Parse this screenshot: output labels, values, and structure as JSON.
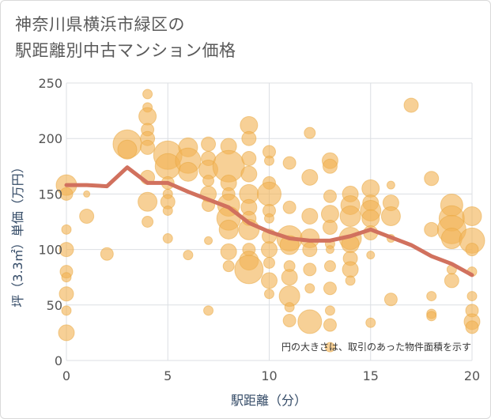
{
  "title_lines": [
    "神奈川県横浜市緑区の",
    "駅距離別中古マンション価格"
  ],
  "chart_data": {
    "type": "scatter",
    "title": "神奈川県横浜市緑区の駅距離別中古マンション価格",
    "xlabel": "駅距離（分）",
    "ylabel": "坪（3.3㎡）単価（万円）",
    "xlim": [
      0,
      20
    ],
    "ylim": [
      0,
      250
    ],
    "x_ticks": [
      0,
      5,
      10,
      15,
      20
    ],
    "y_ticks": [
      0,
      50,
      100,
      150,
      200,
      250
    ],
    "grid": true,
    "note": "円の大きさは、取引のあった物件面積を示す",
    "colors": {
      "bubble": "#f2b355",
      "bubble_edge": "#e8a53c",
      "line": "#d1715e",
      "grid": "#dcdfe3"
    },
    "trend_line": {
      "x": [
        0,
        1,
        2,
        3,
        4,
        5,
        6,
        7,
        8,
        9,
        10,
        11,
        12,
        13,
        14,
        15,
        16,
        17,
        18,
        19,
        20
      ],
      "y": [
        158,
        158,
        157,
        174,
        160,
        160,
        152,
        145,
        138,
        124,
        116,
        110,
        108,
        108,
        112,
        118,
        111,
        104,
        94,
        87,
        77
      ]
    },
    "bubbles": [
      {
        "x": 0,
        "y": 158,
        "s": 13
      },
      {
        "x": 0,
        "y": 150,
        "s": 8
      },
      {
        "x": 0,
        "y": 118,
        "s": 6
      },
      {
        "x": 0,
        "y": 100,
        "s": 9
      },
      {
        "x": 0,
        "y": 80,
        "s": 8
      },
      {
        "x": 0,
        "y": 75,
        "s": 6
      },
      {
        "x": 0,
        "y": 60,
        "s": 9
      },
      {
        "x": 0,
        "y": 45,
        "s": 6
      },
      {
        "x": 0,
        "y": 25,
        "s": 10
      },
      {
        "x": 1,
        "y": 150,
        "s": 4
      },
      {
        "x": 1,
        "y": 130,
        "s": 9
      },
      {
        "x": 2,
        "y": 96,
        "s": 8
      },
      {
        "x": 3,
        "y": 195,
        "s": 18
      },
      {
        "x": 3,
        "y": 190,
        "s": 12
      },
      {
        "x": 4,
        "y": 240,
        "s": 6
      },
      {
        "x": 4,
        "y": 228,
        "s": 6
      },
      {
        "x": 4,
        "y": 220,
        "s": 11
      },
      {
        "x": 4,
        "y": 208,
        "s": 8
      },
      {
        "x": 4,
        "y": 200,
        "s": 9
      },
      {
        "x": 4,
        "y": 192,
        "s": 9
      },
      {
        "x": 4,
        "y": 165,
        "s": 9
      },
      {
        "x": 4,
        "y": 143,
        "s": 12
      },
      {
        "x": 4,
        "y": 125,
        "s": 7
      },
      {
        "x": 5,
        "y": 185,
        "s": 18
      },
      {
        "x": 5,
        "y": 175,
        "s": 16
      },
      {
        "x": 5,
        "y": 160,
        "s": 8
      },
      {
        "x": 5,
        "y": 150,
        "s": 6
      },
      {
        "x": 5,
        "y": 143,
        "s": 9
      },
      {
        "x": 5,
        "y": 135,
        "s": 6
      },
      {
        "x": 5,
        "y": 110,
        "s": 6
      },
      {
        "x": 6,
        "y": 192,
        "s": 12
      },
      {
        "x": 6,
        "y": 180,
        "s": 16
      },
      {
        "x": 6,
        "y": 170,
        "s": 12
      },
      {
        "x": 6,
        "y": 95,
        "s": 6
      },
      {
        "x": 7,
        "y": 195,
        "s": 9
      },
      {
        "x": 7,
        "y": 182,
        "s": 9
      },
      {
        "x": 7,
        "y": 172,
        "s": 12
      },
      {
        "x": 7,
        "y": 162,
        "s": 7
      },
      {
        "x": 7,
        "y": 150,
        "s": 10
      },
      {
        "x": 7,
        "y": 140,
        "s": 8
      },
      {
        "x": 7,
        "y": 108,
        "s": 5
      },
      {
        "x": 7,
        "y": 45,
        "s": 6
      },
      {
        "x": 8,
        "y": 193,
        "s": 10
      },
      {
        "x": 8,
        "y": 175,
        "s": 20
      },
      {
        "x": 8,
        "y": 160,
        "s": 10
      },
      {
        "x": 8,
        "y": 150,
        "s": 8
      },
      {
        "x": 8,
        "y": 140,
        "s": 14
      },
      {
        "x": 8,
        "y": 128,
        "s": 15
      },
      {
        "x": 8,
        "y": 118,
        "s": 12
      },
      {
        "x": 8,
        "y": 98,
        "s": 10
      },
      {
        "x": 8,
        "y": 85,
        "s": 7
      },
      {
        "x": 9,
        "y": 212,
        "s": 11
      },
      {
        "x": 9,
        "y": 200,
        "s": 9
      },
      {
        "x": 9,
        "y": 182,
        "s": 9
      },
      {
        "x": 9,
        "y": 168,
        "s": 10
      },
      {
        "x": 9,
        "y": 150,
        "s": 12
      },
      {
        "x": 9,
        "y": 138,
        "s": 10
      },
      {
        "x": 9,
        "y": 128,
        "s": 9
      },
      {
        "x": 9,
        "y": 118,
        "s": 13
      },
      {
        "x": 9,
        "y": 100,
        "s": 8
      },
      {
        "x": 9,
        "y": 90,
        "s": 12
      },
      {
        "x": 9,
        "y": 82,
        "s": 18
      },
      {
        "x": 10,
        "y": 188,
        "s": 8
      },
      {
        "x": 10,
        "y": 180,
        "s": 6
      },
      {
        "x": 10,
        "y": 160,
        "s": 8
      },
      {
        "x": 10,
        "y": 150,
        "s": 15
      },
      {
        "x": 10,
        "y": 135,
        "s": 8
      },
      {
        "x": 10,
        "y": 128,
        "s": 6
      },
      {
        "x": 10,
        "y": 112,
        "s": 9
      },
      {
        "x": 10,
        "y": 100,
        "s": 10
      },
      {
        "x": 10,
        "y": 88,
        "s": 7
      },
      {
        "x": 10,
        "y": 72,
        "s": 10
      },
      {
        "x": 10,
        "y": 60,
        "s": 6
      },
      {
        "x": 11,
        "y": 178,
        "s": 8
      },
      {
        "x": 11,
        "y": 138,
        "s": 8
      },
      {
        "x": 11,
        "y": 110,
        "s": 16
      },
      {
        "x": 11,
        "y": 104,
        "s": 12
      },
      {
        "x": 11,
        "y": 85,
        "s": 7
      },
      {
        "x": 11,
        "y": 75,
        "s": 10
      },
      {
        "x": 11,
        "y": 58,
        "s": 13
      },
      {
        "x": 11,
        "y": 48,
        "s": 6
      },
      {
        "x": 11,
        "y": 36,
        "s": 8
      },
      {
        "x": 12,
        "y": 205,
        "s": 7
      },
      {
        "x": 12,
        "y": 165,
        "s": 10
      },
      {
        "x": 12,
        "y": 130,
        "s": 10
      },
      {
        "x": 12,
        "y": 110,
        "s": 12
      },
      {
        "x": 12,
        "y": 100,
        "s": 9
      },
      {
        "x": 12,
        "y": 82,
        "s": 8
      },
      {
        "x": 12,
        "y": 65,
        "s": 6
      },
      {
        "x": 12,
        "y": 35,
        "s": 15
      },
      {
        "x": 13,
        "y": 180,
        "s": 10
      },
      {
        "x": 13,
        "y": 175,
        "s": 9
      },
      {
        "x": 13,
        "y": 148,
        "s": 8
      },
      {
        "x": 13,
        "y": 132,
        "s": 11
      },
      {
        "x": 13,
        "y": 120,
        "s": 9
      },
      {
        "x": 13,
        "y": 105,
        "s": 6
      },
      {
        "x": 13,
        "y": 100,
        "s": 5
      },
      {
        "x": 13,
        "y": 85,
        "s": 7
      },
      {
        "x": 13,
        "y": 65,
        "s": 8
      },
      {
        "x": 13,
        "y": 45,
        "s": 6
      },
      {
        "x": 13,
        "y": 32,
        "s": 8
      },
      {
        "x": 13,
        "y": 12,
        "s": 6
      },
      {
        "x": 14,
        "y": 150,
        "s": 10
      },
      {
        "x": 14,
        "y": 140,
        "s": 12
      },
      {
        "x": 14,
        "y": 130,
        "s": 13
      },
      {
        "x": 14,
        "y": 110,
        "s": 14
      },
      {
        "x": 14,
        "y": 105,
        "s": 11
      },
      {
        "x": 14,
        "y": 92,
        "s": 9
      },
      {
        "x": 14,
        "y": 82,
        "s": 10
      },
      {
        "x": 14,
        "y": 72,
        "s": 6
      },
      {
        "x": 15,
        "y": 155,
        "s": 11
      },
      {
        "x": 15,
        "y": 142,
        "s": 10
      },
      {
        "x": 15,
        "y": 135,
        "s": 13
      },
      {
        "x": 15,
        "y": 128,
        "s": 11
      },
      {
        "x": 15,
        "y": 115,
        "s": 9
      },
      {
        "x": 15,
        "y": 95,
        "s": 5
      },
      {
        "x": 15,
        "y": 34,
        "s": 6
      },
      {
        "x": 16,
        "y": 158,
        "s": 5
      },
      {
        "x": 16,
        "y": 142,
        "s": 10
      },
      {
        "x": 16,
        "y": 130,
        "s": 12
      },
      {
        "x": 16,
        "y": 110,
        "s": 5
      },
      {
        "x": 16,
        "y": 55,
        "s": 8
      },
      {
        "x": 17,
        "y": 230,
        "s": 9
      },
      {
        "x": 18,
        "y": 164,
        "s": 9
      },
      {
        "x": 18,
        "y": 118,
        "s": 9
      },
      {
        "x": 18,
        "y": 58,
        "s": 6
      },
      {
        "x": 18,
        "y": 42,
        "s": 6
      },
      {
        "x": 18,
        "y": 40,
        "s": 6
      },
      {
        "x": 19,
        "y": 140,
        "s": 14
      },
      {
        "x": 19,
        "y": 128,
        "s": 16
      },
      {
        "x": 19,
        "y": 118,
        "s": 18
      },
      {
        "x": 19,
        "y": 110,
        "s": 13
      },
      {
        "x": 19,
        "y": 82,
        "s": 6
      },
      {
        "x": 19,
        "y": 72,
        "s": 9
      },
      {
        "x": 20,
        "y": 130,
        "s": 12
      },
      {
        "x": 20,
        "y": 108,
        "s": 16
      },
      {
        "x": 20,
        "y": 100,
        "s": 8
      },
      {
        "x": 20,
        "y": 80,
        "s": 6
      },
      {
        "x": 20,
        "y": 58,
        "s": 6
      },
      {
        "x": 20,
        "y": 45,
        "s": 8
      },
      {
        "x": 20,
        "y": 35,
        "s": 10
      },
      {
        "x": 20,
        "y": 30,
        "s": 8
      }
    ]
  }
}
